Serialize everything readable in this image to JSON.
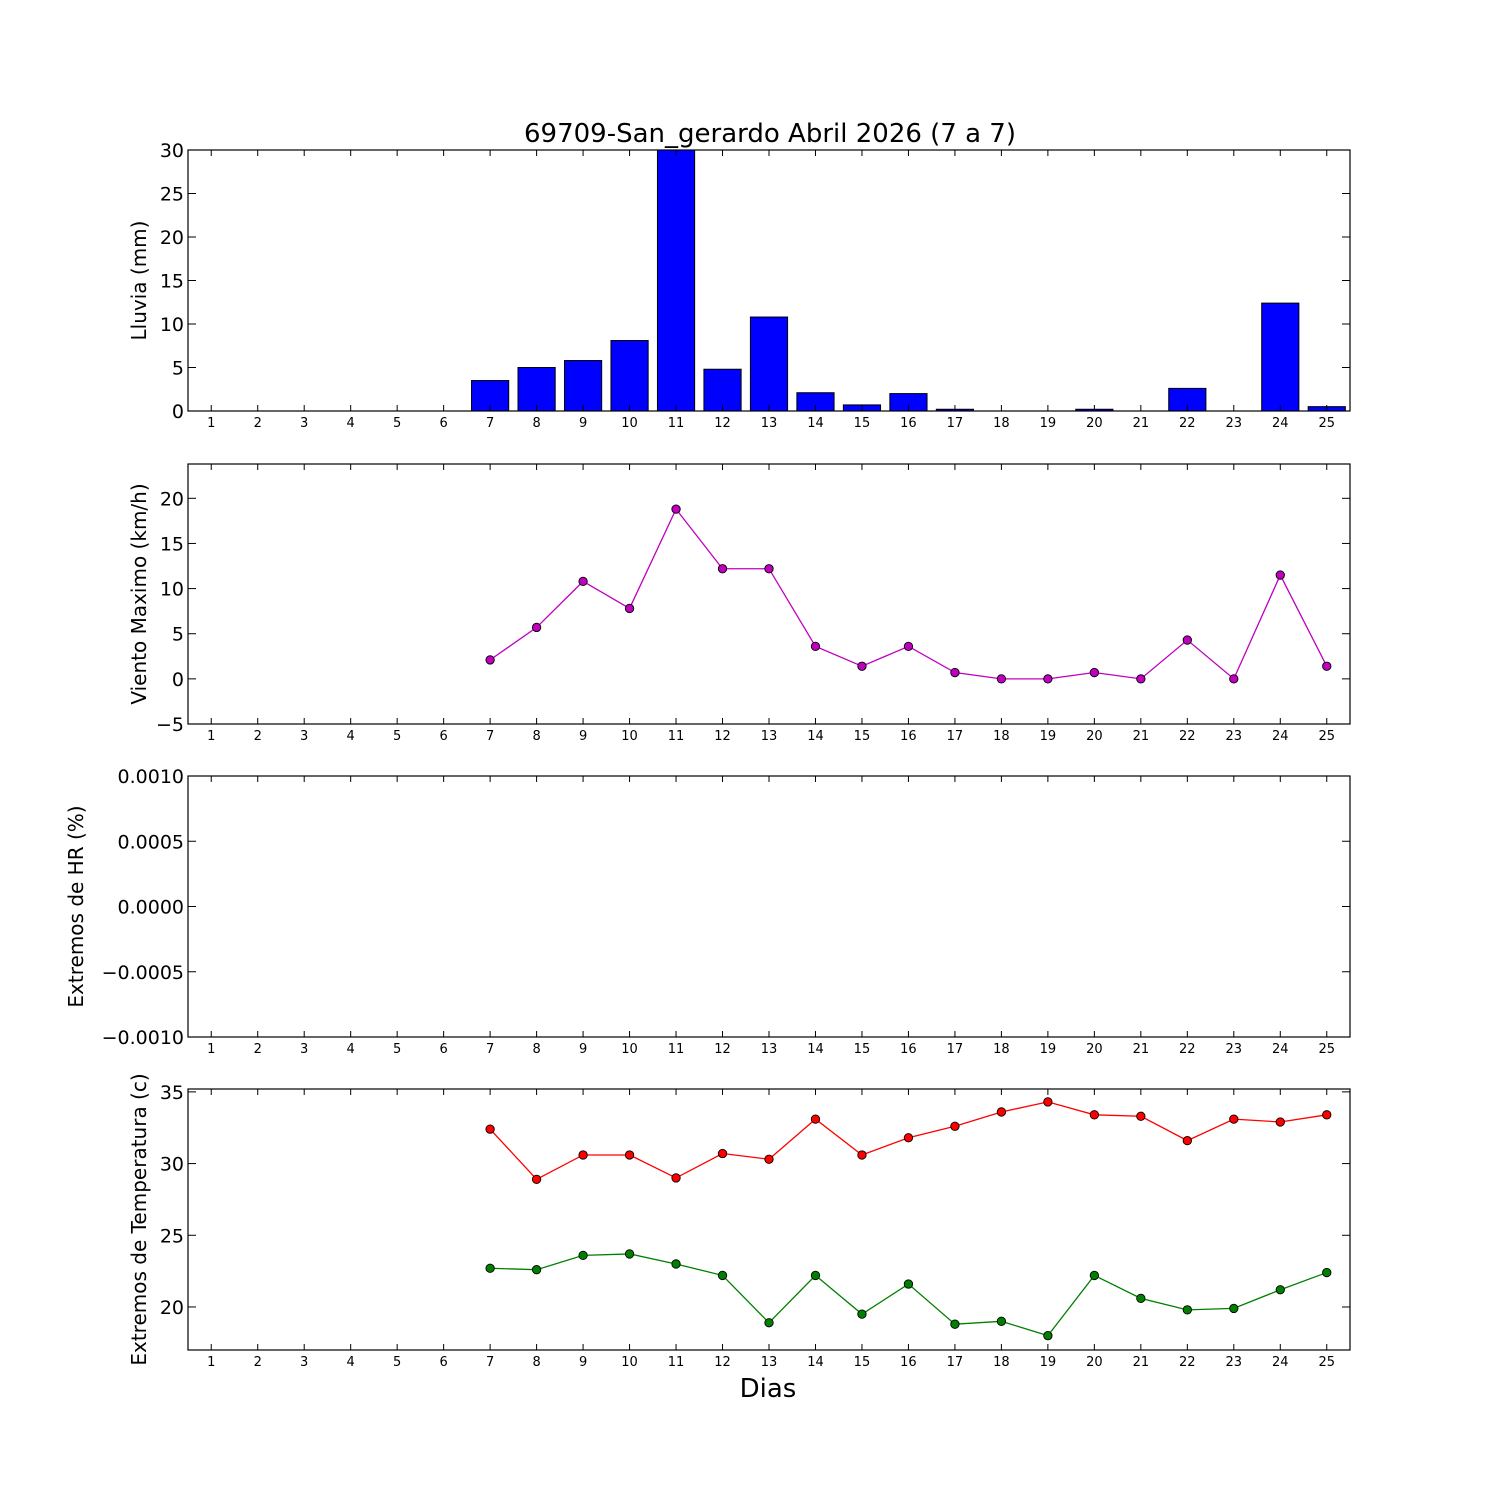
{
  "title": "69709-San_gerardo Abril 2026  (7 a 7)",
  "xlabel": "Dias",
  "colors": {
    "rain": "#0000ff",
    "wind": "#bf00bf",
    "tmax": "#ff0000",
    "tmin": "#008000"
  },
  "chart_data": [
    {
      "type": "bar",
      "title": "69709-San_gerardo Abril 2026  (7 a 7)",
      "ylabel": "Lluvia (mm)",
      "ylim": [
        0,
        30
      ],
      "yticks": [
        "0",
        "5",
        "10",
        "15",
        "20",
        "25",
        "30"
      ],
      "xlim": [
        0.5,
        25.5
      ],
      "categories": [
        "1",
        "2",
        "3",
        "4",
        "5",
        "6",
        "7",
        "8",
        "9",
        "10",
        "11",
        "12",
        "13",
        "14",
        "15",
        "16",
        "17",
        "18",
        "19",
        "20",
        "21",
        "22",
        "23",
        "24",
        "25"
      ],
      "values": [
        0,
        0,
        0,
        0,
        0,
        0,
        3.5,
        5.0,
        5.8,
        8.1,
        30.0,
        4.8,
        10.8,
        2.1,
        0.7,
        2.0,
        0.2,
        0.0,
        0.0,
        0.2,
        0.0,
        2.6,
        0.0,
        12.4,
        0.5
      ],
      "color": "#0000ff"
    },
    {
      "type": "line",
      "ylabel": "Viento Maximo (km/h)",
      "ylim": [
        -5,
        23.8
      ],
      "yticks": [
        "−5",
        "0",
        "5",
        "10",
        "15",
        "20"
      ],
      "xlim": [
        0.5,
        25.5
      ],
      "x": [
        7,
        8,
        9,
        10,
        11,
        12,
        13,
        14,
        15,
        16,
        17,
        18,
        19,
        20,
        21,
        22,
        23,
        24,
        25
      ],
      "series": [
        {
          "values": [
            2.1,
            5.7,
            10.8,
            7.8,
            18.8,
            12.2,
            12.2,
            3.6,
            1.4,
            3.6,
            0.7,
            0.0,
            0.0,
            0.7,
            0.0,
            4.3,
            0.0,
            11.5,
            1.4
          ],
          "color": "#bf00bf"
        }
      ]
    },
    {
      "type": "line",
      "ylabel": "Extremos de HR (%)",
      "ylim": [
        -0.001,
        0.001
      ],
      "yticks": [
        "−0.0010",
        "−0.0005",
        "0.0000",
        "0.0005",
        "0.0010"
      ],
      "xlim": [
        0.5,
        25.5
      ],
      "x": [],
      "series": []
    },
    {
      "type": "line",
      "ylabel": "Extremos de Temperatura (c)",
      "xlabel": "Dias",
      "ylim": [
        17,
        35.2
      ],
      "yticks": [
        "20",
        "25",
        "30",
        "35"
      ],
      "xlim": [
        0.5,
        25.5
      ],
      "x": [
        7,
        8,
        9,
        10,
        11,
        12,
        13,
        14,
        15,
        16,
        17,
        18,
        19,
        20,
        21,
        22,
        23,
        24,
        25
      ],
      "series": [
        {
          "values": [
            32.4,
            28.9,
            30.6,
            30.6,
            29.0,
            30.7,
            30.3,
            33.1,
            30.6,
            31.8,
            32.6,
            33.6,
            34.3,
            33.4,
            33.3,
            31.6,
            33.1,
            32.9,
            33.4
          ],
          "color": "#ff0000"
        },
        {
          "values": [
            22.7,
            22.6,
            23.6,
            23.7,
            23.0,
            22.2,
            18.9,
            22.2,
            19.5,
            21.6,
            18.8,
            19.0,
            18.0,
            22.2,
            20.6,
            19.8,
            19.9,
            21.2,
            22.4
          ],
          "color": "#008000"
        }
      ]
    }
  ]
}
